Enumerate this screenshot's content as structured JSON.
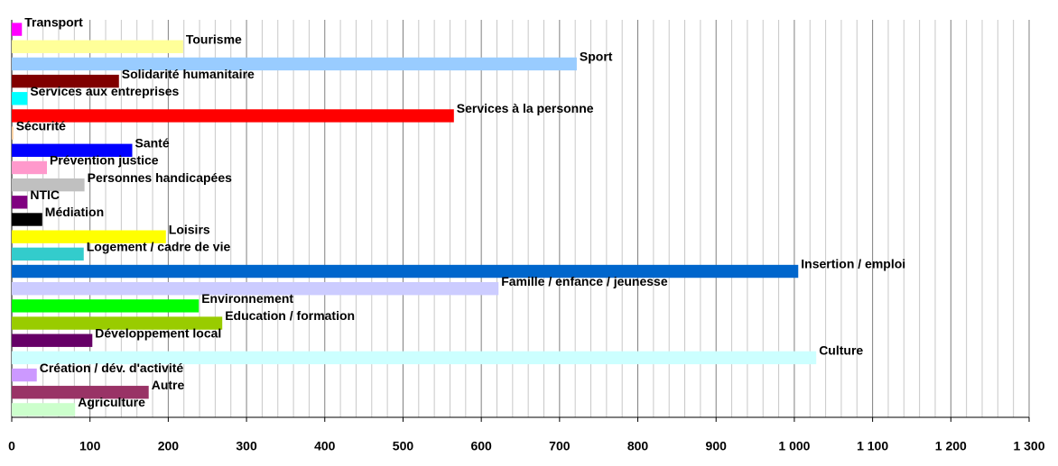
{
  "chart_data": {
    "type": "barh",
    "categories": [
      "Transport",
      "Tourisme",
      "Sport",
      "Solidarité humanitaire",
      "Services aux entreprises",
      "Services à la personne",
      "Sécurité",
      "Santé",
      "Prévention justice",
      "Personnes handicapées",
      "NTIC",
      "Médiation",
      "Loisirs",
      "Logement / cadre de vie",
      "Insertion / emploi",
      "Famille / enfance / jeunesse",
      "Environnement",
      "Education / formation",
      "Développement local",
      "Culture",
      "Création / dév. d'activité",
      "Autre",
      "Agriculture"
    ],
    "values": [
      13,
      219,
      722,
      137,
      20,
      565,
      2,
      154,
      45,
      93,
      20,
      39,
      197,
      92,
      1005,
      622,
      239,
      269,
      103,
      1028,
      32,
      175,
      81
    ],
    "colors": [
      "#ff00ff",
      "#ffff99",
      "#99ccff",
      "#800000",
      "#00ffff",
      "#ff0000",
      "#ffcc99",
      "#0000ff",
      "#ff99cc",
      "#c0c0c0",
      "#800080",
      "#000000",
      "#ffff00",
      "#33cccc",
      "#0066cc",
      "#ccccff",
      "#00ff00",
      "#99cc00",
      "#660066",
      "#ccffff",
      "#cc99ff",
      "#993366",
      "#ccffcc"
    ],
    "xlim": [
      0,
      1300
    ],
    "xticks": [
      0,
      100,
      200,
      300,
      400,
      500,
      600,
      700,
      800,
      900,
      {
        "value": 1000,
        "label": "1 000"
      },
      {
        "value": 1100,
        "label": "1 100"
      },
      {
        "value": 1200,
        "label": "1 200"
      },
      {
        "value": 1300,
        "label": "1 300"
      }
    ],
    "xminorticks": [
      20,
      40,
      60,
      80,
      120,
      140,
      160,
      180,
      220,
      240,
      260,
      280,
      320,
      340,
      360,
      380,
      420,
      440,
      460,
      480,
      520,
      540,
      560,
      580,
      620,
      640,
      660,
      680,
      720,
      740,
      760,
      780,
      820,
      840,
      860,
      880,
      920,
      940,
      960,
      980,
      1020,
      1040,
      1060,
      1080,
      1120,
      1140,
      1160,
      1180,
      1220,
      1240,
      1260,
      1280
    ],
    "grid": true
  }
}
